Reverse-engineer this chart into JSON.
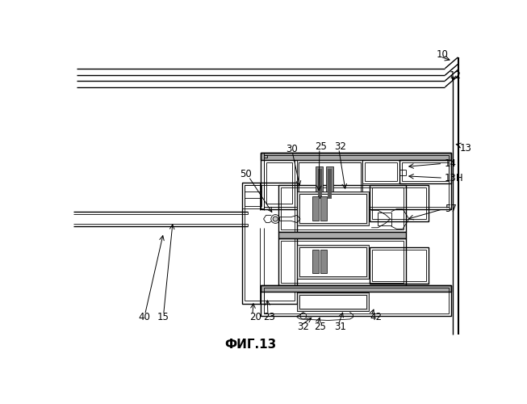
{
  "bg_color": "#ffffff",
  "lc": "#000000",
  "gray1": "#aaaaaa",
  "gray2": "#cccccc",
  "gray3": "#888888",
  "title": "ФИГ.13",
  "lw_t": 0.6,
  "lw_m": 1.0,
  "lw_k": 1.5
}
